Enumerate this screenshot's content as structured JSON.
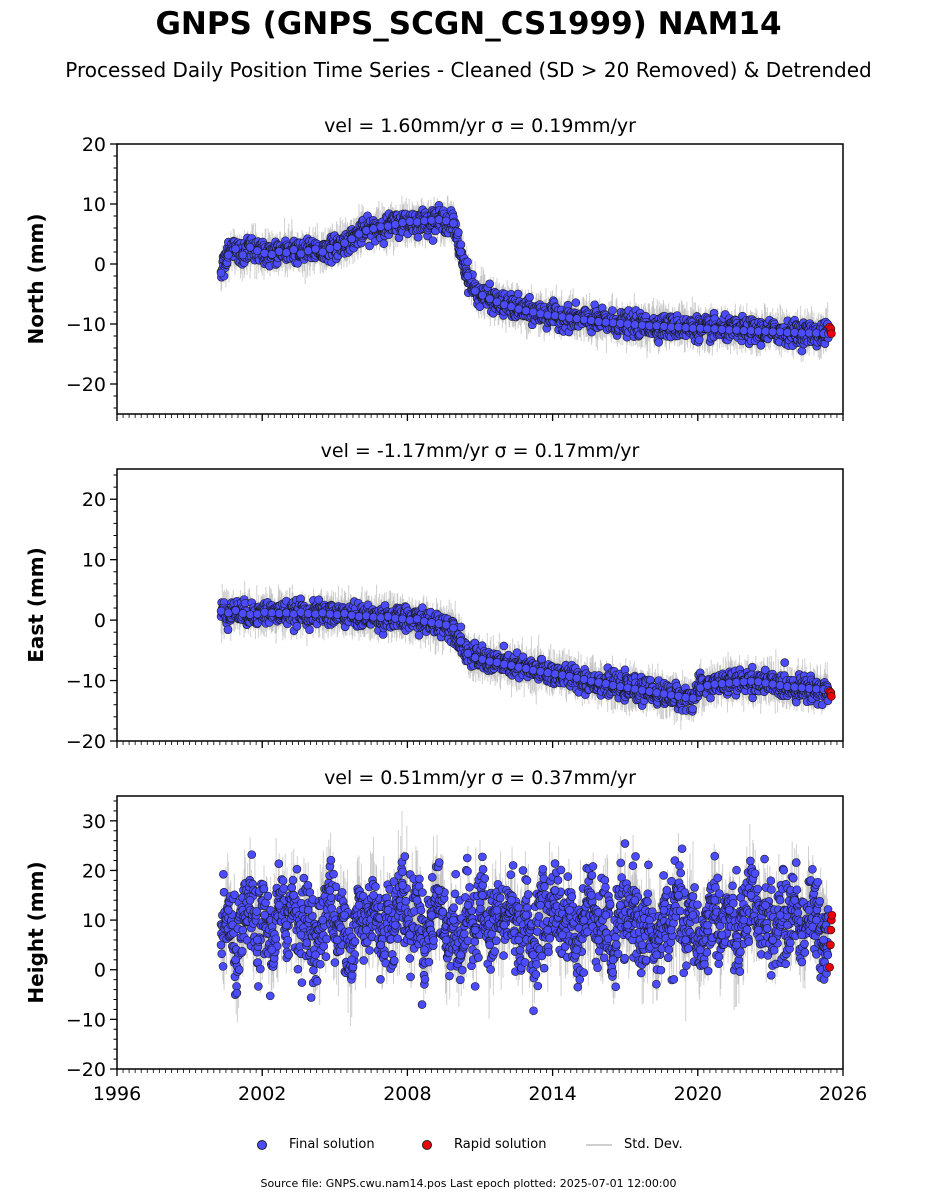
{
  "title": "GNPS (GNPS_SCGN_CS1999) NAM14",
  "subtitle": "Processed Daily Position Time Series - Cleaned (SD > 20 Removed) & Detrended",
  "legend": {
    "final_label": "Final solution",
    "rapid_label": "Rapid solution",
    "std_label": "Std. Dev."
  },
  "footer": {
    "source": "Source file: GNPS.cwu.nam14.pos  Last epoch plotted: 2025-07-01 12:00:00"
  },
  "colors": {
    "final": "#4b4bff",
    "rapid": "#e8000b",
    "std_dev": "#b0b0b0",
    "marker_edge": "#1a1a1a"
  },
  "chart_data": [
    {
      "type": "scatter",
      "panel": "north",
      "title": "vel = 1.60mm/yr   σ = 0.19mm/yr",
      "ylabel": "North (mm)",
      "xlabel": "",
      "xlim": [
        1996,
        2026
      ],
      "ylim": [
        -25,
        20
      ],
      "yticks": [
        -20,
        -10,
        0,
        10,
        20
      ],
      "ytick_labels": [
        "−20",
        "−10",
        "0",
        "10",
        "20"
      ],
      "xticks": [
        1996,
        2002,
        2008,
        2014,
        2020,
        2026
      ],
      "show_xtick_labels": false,
      "grid": false,
      "series": [
        {
          "name": "Final solution",
          "x": [
            2000.3,
            2000.6,
            2000.9,
            2001.2,
            2001.5,
            2001.8,
            2002.1,
            2002.4,
            2002.7,
            2003.0,
            2003.3,
            2003.6,
            2003.9,
            2004.2,
            2004.5,
            2004.8,
            2005.1,
            2005.4,
            2005.7,
            2006.0,
            2006.3,
            2006.6,
            2006.9,
            2007.2,
            2007.5,
            2007.8,
            2008.1,
            2008.4,
            2008.7,
            2009.0,
            2009.3,
            2009.6,
            2009.9,
            2010.2,
            2010.5,
            2010.8,
            2011.1,
            2011.4,
            2011.7,
            2012.0,
            2012.3,
            2012.6,
            2012.9,
            2013.2,
            2013.5,
            2013.8,
            2014.1,
            2014.4,
            2014.7,
            2015.0,
            2015.3,
            2015.6,
            2015.9,
            2016.2,
            2016.5,
            2016.8,
            2017.1,
            2017.4,
            2017.7,
            2018.0,
            2018.3,
            2018.6,
            2018.9,
            2019.2,
            2019.5,
            2019.8,
            2020.1,
            2020.4,
            2020.7,
            2021.0,
            2021.3,
            2021.6,
            2021.9,
            2022.2,
            2022.5,
            2022.8,
            2023.1,
            2023.4,
            2023.7,
            2024.0,
            2024.3,
            2024.6,
            2024.9,
            2025.2,
            2025.4
          ],
          "y": [
            -1.5,
            1.5,
            2.5,
            1.5,
            2.8,
            2.2,
            1.8,
            1.6,
            2.1,
            1.9,
            2.4,
            1.7,
            2.2,
            2.5,
            2.0,
            2.6,
            2.9,
            3.5,
            4.2,
            5.0,
            5.6,
            5.9,
            6.2,
            6.3,
            6.6,
            6.9,
            7.1,
            7.0,
            7.2,
            7.3,
            7.4,
            7.2,
            6.8,
            2.0,
            -2.0,
            -4.5,
            -5.2,
            -5.8,
            -6.3,
            -6.8,
            -7.1,
            -7.5,
            -7.8,
            -8.0,
            -8.3,
            -8.5,
            -8.6,
            -8.8,
            -9.0,
            -9.1,
            -9.3,
            -9.4,
            -9.6,
            -9.7,
            -9.8,
            -9.9,
            -10.0,
            -10.1,
            -10.2,
            -10.3,
            -10.3,
            -10.4,
            -10.5,
            -10.5,
            -10.6,
            -10.7,
            -10.7,
            -10.8,
            -10.8,
            -10.9,
            -11.0,
            -11.0,
            -11.1,
            -11.1,
            -11.2,
            -11.2,
            -11.3,
            -11.3,
            -11.4,
            -11.4,
            -11.5,
            -11.5,
            -11.5,
            -11.6,
            -11.6
          ]
        },
        {
          "name": "Rapid solution",
          "x": [
            2025.45,
            2025.48,
            2025.5,
            2025.52
          ],
          "y": [
            -10.5,
            -11.2,
            -10.8,
            -11.6
          ]
        }
      ]
    },
    {
      "type": "scatter",
      "panel": "east",
      "title": "vel = -1.17mm/yr   σ = 0.17mm/yr",
      "ylabel": "East (mm)",
      "xlabel": "",
      "xlim": [
        1996,
        2026
      ],
      "ylim": [
        -20,
        25
      ],
      "yticks": [
        -20,
        -10,
        0,
        10,
        20
      ],
      "ytick_labels": [
        "−20",
        "−10",
        "0",
        "10",
        "20"
      ],
      "xticks": [
        1996,
        2002,
        2008,
        2014,
        2020,
        2026
      ],
      "show_xtick_labels": false,
      "grid": false,
      "series": [
        {
          "name": "Final solution",
          "x": [
            2000.3,
            2000.6,
            2000.9,
            2001.2,
            2001.5,
            2001.8,
            2002.1,
            2002.4,
            2002.7,
            2003.0,
            2003.3,
            2003.6,
            2003.9,
            2004.2,
            2004.5,
            2004.8,
            2005.1,
            2005.4,
            2005.7,
            2006.0,
            2006.3,
            2006.6,
            2006.9,
            2007.2,
            2007.5,
            2007.8,
            2008.1,
            2008.4,
            2008.7,
            2009.0,
            2009.3,
            2009.6,
            2009.9,
            2010.2,
            2010.5,
            2010.8,
            2011.1,
            2011.4,
            2011.7,
            2012.0,
            2012.3,
            2012.6,
            2012.9,
            2013.2,
            2013.5,
            2013.8,
            2014.1,
            2014.4,
            2014.7,
            2015.0,
            2015.3,
            2015.6,
            2015.9,
            2016.2,
            2016.5,
            2016.8,
            2017.1,
            2017.4,
            2017.7,
            2018.0,
            2018.3,
            2018.6,
            2018.9,
            2019.2,
            2019.5,
            2019.8,
            2020.1,
            2020.4,
            2020.7,
            2021.0,
            2021.3,
            2021.6,
            2021.9,
            2022.2,
            2022.5,
            2022.8,
            2023.1,
            2023.4,
            2023.7,
            2024.0,
            2024.3,
            2024.6,
            2024.9,
            2025.2,
            2025.4
          ],
          "y": [
            1.5,
            1.2,
            1.6,
            1.1,
            0.9,
            1.0,
            1.3,
            1.2,
            1.1,
            1.2,
            1.0,
            1.3,
            1.1,
            1.0,
            1.2,
            1.0,
            0.9,
            1.1,
            0.8,
            0.6,
            0.7,
            0.5,
            0.4,
            0.6,
            0.3,
            0.2,
            0.0,
            0.2,
            -0.2,
            -0.4,
            -0.6,
            -0.8,
            -1.3,
            -3.5,
            -5.5,
            -6.2,
            -6.5,
            -6.8,
            -7.0,
            -7.3,
            -7.5,
            -7.8,
            -8.0,
            -8.3,
            -8.5,
            -8.7,
            -8.9,
            -9.1,
            -9.3,
            -9.6,
            -9.8,
            -10.1,
            -10.3,
            -10.5,
            -10.8,
            -11.0,
            -11.2,
            -11.4,
            -11.6,
            -11.8,
            -12.0,
            -12.2,
            -12.4,
            -12.6,
            -12.8,
            -12.9,
            -11.2,
            -10.8,
            -10.6,
            -10.5,
            -10.4,
            -10.3,
            -10.2,
            -10.1,
            -10.2,
            -10.4,
            -10.6,
            -10.8,
            -11.0,
            -11.1,
            -11.2,
            -11.3,
            -11.4,
            -11.5,
            -11.6
          ]
        },
        {
          "name": "Rapid solution",
          "x": [
            2025.45,
            2025.48,
            2025.5,
            2025.52
          ],
          "y": [
            -11.8,
            -12.3,
            -12.0,
            -12.6
          ]
        }
      ]
    },
    {
      "type": "scatter",
      "panel": "height",
      "title": "vel = 0.51mm/yr   σ = 0.37mm/yr",
      "ylabel": "Height (mm)",
      "xlabel": "",
      "xlim": [
        1996,
        2026
      ],
      "ylim": [
        -20,
        35
      ],
      "yticks": [
        -20,
        -10,
        0,
        10,
        20,
        30
      ],
      "ytick_labels": [
        "−20",
        "−10",
        "0",
        "10",
        "20",
        "30"
      ],
      "xticks": [
        1996,
        2002,
        2008,
        2014,
        2020,
        2026
      ],
      "xtick_labels": [
        "1996",
        "2002",
        "2008",
        "2014",
        "2020",
        "2026"
      ],
      "show_xtick_labels": true,
      "grid": false,
      "series": [
        {
          "name": "Final solution",
          "x": [
            2000.3,
            2000.6,
            2000.9,
            2001.2,
            2001.5,
            2001.8,
            2002.1,
            2002.4,
            2002.7,
            2003.0,
            2003.3,
            2003.6,
            2003.9,
            2004.2,
            2004.5,
            2004.8,
            2005.1,
            2005.4,
            2005.7,
            2006.0,
            2006.3,
            2006.6,
            2006.9,
            2007.2,
            2007.5,
            2007.8,
            2008.1,
            2008.4,
            2008.7,
            2009.0,
            2009.3,
            2009.6,
            2009.9,
            2010.2,
            2010.5,
            2010.8,
            2011.1,
            2011.4,
            2011.7,
            2012.0,
            2012.3,
            2012.6,
            2012.9,
            2013.2,
            2013.5,
            2013.8,
            2014.1,
            2014.4,
            2014.7,
            2015.0,
            2015.3,
            2015.6,
            2015.9,
            2016.2,
            2016.5,
            2016.8,
            2017.1,
            2017.4,
            2017.7,
            2018.0,
            2018.3,
            2018.6,
            2018.9,
            2019.2,
            2019.5,
            2019.8,
            2020.1,
            2020.4,
            2020.7,
            2021.0,
            2021.3,
            2021.6,
            2021.9,
            2022.2,
            2022.5,
            2022.8,
            2023.1,
            2023.4,
            2023.7,
            2024.0,
            2024.3,
            2024.6,
            2024.9,
            2025.2,
            2025.4
          ],
          "y": [
            5,
            12,
            2,
            8,
            14,
            6,
            11,
            4,
            13,
            9,
            15,
            7,
            12,
            3,
            10,
            16,
            6,
            11,
            2,
            13,
            8,
            15,
            5,
            12,
            9,
            17,
            7,
            14,
            4,
            11,
            16,
            6,
            10,
            3,
            13,
            8,
            15,
            5,
            12,
            9,
            14,
            6,
            11,
            3,
            13,
            8,
            16,
            7,
            12,
            4,
            10,
            15,
            6,
            11,
            2,
            13,
            9,
            14,
            5,
            10,
            3,
            12,
            8,
            15,
            6,
            11,
            4,
            9,
            14,
            7,
            12,
            5,
            10,
            15,
            8,
            13,
            6,
            11,
            9,
            14,
            7,
            12,
            10,
            6,
            8
          ]
        },
        {
          "name": "Rapid solution",
          "x": [
            2025.45,
            2025.48,
            2025.5,
            2025.52,
            2025.54
          ],
          "y": [
            0.5,
            5,
            8,
            10,
            11
          ]
        }
      ]
    }
  ]
}
